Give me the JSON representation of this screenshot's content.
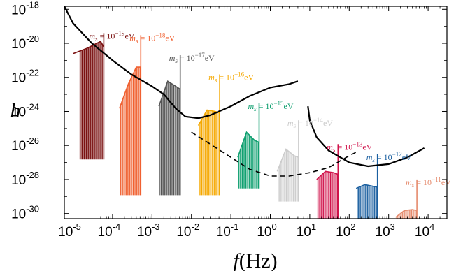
{
  "chart_data": {
    "type": "line",
    "xlabel": {
      "var": "f",
      "unit": "(Hz)"
    },
    "ylabel": "h",
    "x_scale": "log",
    "y_scale": "log",
    "xlim": [
      6e-06,
      30000.0
    ],
    "ylim": [
      5e-31,
      1.5e-18
    ],
    "x_ticks": [
      {
        "value": 1e-05,
        "exp": "-5"
      },
      {
        "value": 0.0001,
        "exp": "-4"
      },
      {
        "value": 0.001,
        "exp": "-3"
      },
      {
        "value": 0.01,
        "exp": "-2"
      },
      {
        "value": 0.1,
        "exp": "-1"
      },
      {
        "value": 1,
        "exp": "0"
      },
      {
        "value": 10,
        "exp": "1"
      },
      {
        "value": 100,
        "exp": "2"
      },
      {
        "value": 1000,
        "exp": "3"
      },
      {
        "value": 10000,
        "exp": "4"
      }
    ],
    "y_ticks": [
      {
        "value": 1e-18,
        "exp": "-18"
      },
      {
        "value": 1e-20,
        "exp": "-20"
      },
      {
        "value": 1e-22,
        "exp": "-22"
      },
      {
        "value": 1e-24,
        "exp": "-24"
      },
      {
        "value": 1e-26,
        "exp": "-26"
      },
      {
        "value": 1e-28,
        "exp": "-28"
      },
      {
        "value": 1e-30,
        "exp": "-30"
      }
    ],
    "tick_base": "10",
    "series": [
      {
        "label_prefix": "m",
        "label_sub": "s",
        "label_mid": " = 10",
        "label_exp": "−19",
        "label_unit": "eV",
        "color": "#7a1010",
        "envelope": [
          [
            1e-05,
            2.5e-21
          ],
          [
            2.2e-05,
            5e-21
          ],
          [
            5e-05,
            1.3e-20
          ],
          [
            6e-05,
            6e-21
          ]
        ],
        "spikes_f": [
          1.5e-05,
          5.5e-05
        ],
        "spikes_bottom": 1.5e-27,
        "n_spikes": 22,
        "peak": [
          6e-05,
          4e-20
        ]
      },
      {
        "label_prefix": "m",
        "label_sub": "s",
        "label_mid": " = 10",
        "label_exp": "−18",
        "label_unit": "eV",
        "color": "#f06030",
        "envelope": [
          [
            0.00015,
            1.5e-24
          ],
          [
            0.00025,
            4e-23
          ],
          [
            0.0004,
            4e-22
          ],
          [
            0.00052,
            4e-22
          ]
        ],
        "spikes_f": [
          0.00016,
          0.0005
        ],
        "spikes_bottom": 1.2e-29,
        "n_spikes": 18,
        "peak": [
          0.00052,
          3e-20
        ]
      },
      {
        "label_prefix": "m",
        "label_sub": "s",
        "label_mid": " = 10",
        "label_exp": "−17",
        "label_unit": "eV",
        "color": "#555555",
        "envelope": [
          [
            0.0015,
            2e-24
          ],
          [
            0.0025,
            6e-23
          ],
          [
            0.004,
            3e-23
          ],
          [
            0.0052,
            2e-23
          ]
        ],
        "spikes_f": [
          0.0016,
          0.005
        ],
        "spikes_bottom": 1.2e-29,
        "n_spikes": 18,
        "peak": [
          0.0052,
          2e-21
        ]
      },
      {
        "label_prefix": "m",
        "label_sub": "s",
        "label_mid": " = 10",
        "label_exp": "−16",
        "label_unit": "eV",
        "color": "#f5a800",
        "envelope": [
          [
            0.015,
            1.5e-25
          ],
          [
            0.025,
            1.2e-24
          ],
          [
            0.04,
            1e-24
          ],
          [
            0.052,
            8e-25
          ]
        ],
        "spikes_f": [
          0.016,
          0.05
        ],
        "spikes_bottom": 1.2e-29,
        "n_spikes": 18,
        "peak": [
          0.052,
          1.5e-22
        ]
      },
      {
        "label_prefix": "m",
        "label_sub": "s",
        "label_mid": " = 10",
        "label_exp": "−15",
        "label_unit": "eV",
        "color": "#10a070",
        "envelope": [
          [
            0.15,
            2e-27
          ],
          [
            0.25,
            6e-26
          ],
          [
            0.4,
            2e-26
          ],
          [
            0.52,
            1.5e-26
          ]
        ],
        "spikes_f": [
          0.16,
          0.5
        ],
        "spikes_bottom": 3e-29,
        "n_spikes": 18,
        "peak": [
          0.52,
          3e-24
        ]
      },
      {
        "label_prefix": "m",
        "label_sub": "s",
        "label_mid": " = 10",
        "label_exp": "−14",
        "label_unit": "eV",
        "color": "#cccccc",
        "envelope": [
          [
            1.5,
            3e-28
          ],
          [
            2.5,
            6e-27
          ],
          [
            4.0,
            2.5e-27
          ],
          [
            5.2,
            2e-27
          ]
        ],
        "spikes_f": [
          1.6,
          5.0
        ],
        "spikes_bottom": 5e-30,
        "n_spikes": 18,
        "peak": [
          5.2,
          3e-25
        ]
      },
      {
        "label_prefix": "m",
        "label_sub": "s",
        "label_mid": " = 10",
        "label_exp": "−13",
        "label_unit": "eV",
        "color": "#d0124a",
        "envelope": [
          [
            15,
            1e-28
          ],
          [
            25,
            3e-28
          ],
          [
            40,
            2.5e-28
          ],
          [
            52,
            2e-28
          ]
        ],
        "spikes_f": [
          16,
          50
        ],
        "spikes_bottom": 5e-31,
        "n_spikes": 18,
        "peak": [
          52,
          1.2e-26
        ]
      },
      {
        "label_prefix": "m",
        "label_sub": "s",
        "label_mid": " = 10",
        "label_exp": "−12",
        "label_unit": "eV",
        "color": "#1a5fa0",
        "envelope": [
          [
            150,
            3e-29
          ],
          [
            250,
            5e-29
          ],
          [
            400,
            4e-29
          ],
          [
            520,
            3.5e-29
          ]
        ],
        "spikes_f": [
          160,
          500
        ],
        "spikes_bottom": 5e-31,
        "n_spikes": 18,
        "peak": [
          520,
          3e-27
        ]
      },
      {
        "label_prefix": "m",
        "label_sub": "s",
        "label_mid": " = 10",
        "label_exp": "−11",
        "label_unit": "eV",
        "color": "#e58a6c",
        "envelope": [
          [
            1500,
            6e-31
          ],
          [
            2500,
            1.5e-30
          ],
          [
            4000,
            1.7e-30
          ],
          [
            5200,
            1.5e-30
          ]
        ],
        "spikes_f": [
          1600,
          5000
        ],
        "spikes_bottom": 5e-31,
        "n_spikes": 18,
        "peak": [
          5200,
          1e-28
        ]
      }
    ],
    "sensitivity_curves": [
      {
        "style": "solid",
        "color": "#000000",
        "points": [
          [
            6e-06,
            1.5e-18
          ],
          [
            1e-05,
            1.5e-19
          ],
          [
            3e-05,
            1e-20
          ],
          [
            0.0001,
            1e-21
          ],
          [
            0.0003,
            1.5e-22
          ],
          [
            0.001,
            3e-23
          ],
          [
            0.002,
            1e-23
          ],
          [
            0.004,
            1.5e-24
          ],
          [
            0.007,
            5e-25
          ],
          [
            0.015,
            4e-25
          ],
          [
            0.03,
            6e-25
          ],
          [
            0.1,
            2e-24
          ],
          [
            0.3,
            8e-24
          ],
          [
            1,
            2.5e-23
          ],
          [
            3,
            4e-23
          ],
          [
            5,
            6e-23
          ]
        ]
      },
      {
        "style": "solid",
        "color": "#000000",
        "points": [
          [
            9,
            2e-24
          ],
          [
            10,
            3e-25
          ],
          [
            15,
            3e-26
          ],
          [
            30,
            5e-27
          ],
          [
            100,
            1e-27
          ],
          [
            300,
            6e-28
          ],
          [
            1000,
            8e-28
          ],
          [
            3000,
            2e-27
          ],
          [
            8000,
            7e-27
          ]
        ]
      },
      {
        "style": "dashed",
        "color": "#000000",
        "points": [
          [
            0.01,
            6e-26
          ],
          [
            0.03,
            1.2e-26
          ],
          [
            0.1,
            2e-27
          ],
          [
            0.3,
            4e-28
          ],
          [
            1,
            1.6e-28
          ],
          [
            3,
            1.6e-28
          ],
          [
            10,
            2.5e-28
          ],
          [
            30,
            5e-28
          ],
          [
            100,
            2.5e-27
          ],
          [
            150,
            4e-27
          ]
        ]
      }
    ]
  }
}
